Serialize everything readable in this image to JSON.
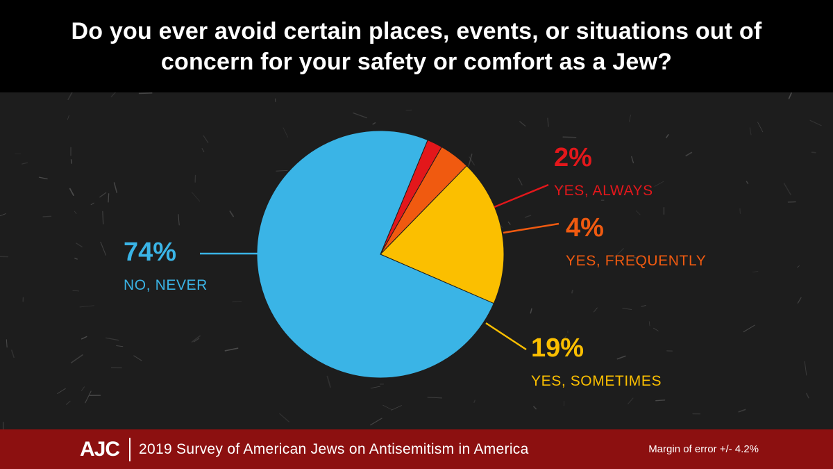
{
  "header": {
    "title": "Do you ever avoid certain places, events, or situations out of concern for your safety or comfort as a Jew?"
  },
  "chart_data": {
    "type": "pie",
    "title": "Do you ever avoid certain places, events, or situations out of concern for your safety or comfort as a Jew?",
    "slices": [
      {
        "label": "YES, ALWAYS",
        "value": 2,
        "display": "2%",
        "color": "#e3171b"
      },
      {
        "label": "YES, FREQUENTLY",
        "value": 4,
        "display": "4%",
        "color": "#f05a10"
      },
      {
        "label": "YES, SOMETIMES",
        "value": 19,
        "display": "19%",
        "color": "#fbbf00"
      },
      {
        "label": "NO, NEVER",
        "value": 74,
        "display": "74%",
        "color": "#3ab4e6"
      }
    ]
  },
  "footer": {
    "logo": "AJC",
    "survey": "2019 Survey of American Jews on Antisemitism in America",
    "margin": "Margin of error +/- 4.2%"
  },
  "colors": {
    "header_bg": "#000000",
    "background": "#1d1d1d",
    "footer_bg": "#8c1010"
  }
}
